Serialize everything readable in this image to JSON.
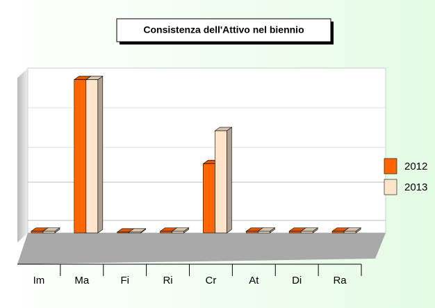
{
  "chart_data": {
    "type": "bar",
    "title": "Consistenza dell'Attivo nel biennio",
    "categories": [
      "Im",
      "Ma",
      "Fi",
      "Ri",
      "Cr",
      "At",
      "Di",
      "Ra"
    ],
    "series": [
      {
        "name": "2012",
        "color": "#ff6600",
        "values": [
          1,
          93,
          0.5,
          1,
          42,
          1,
          1,
          1
        ]
      },
      {
        "name": "2013",
        "color": "#fde4cb",
        "values": [
          1,
          93,
          0.5,
          1,
          62,
          1,
          1,
          1
        ]
      }
    ],
    "ylim": [
      0,
      100
    ]
  }
}
